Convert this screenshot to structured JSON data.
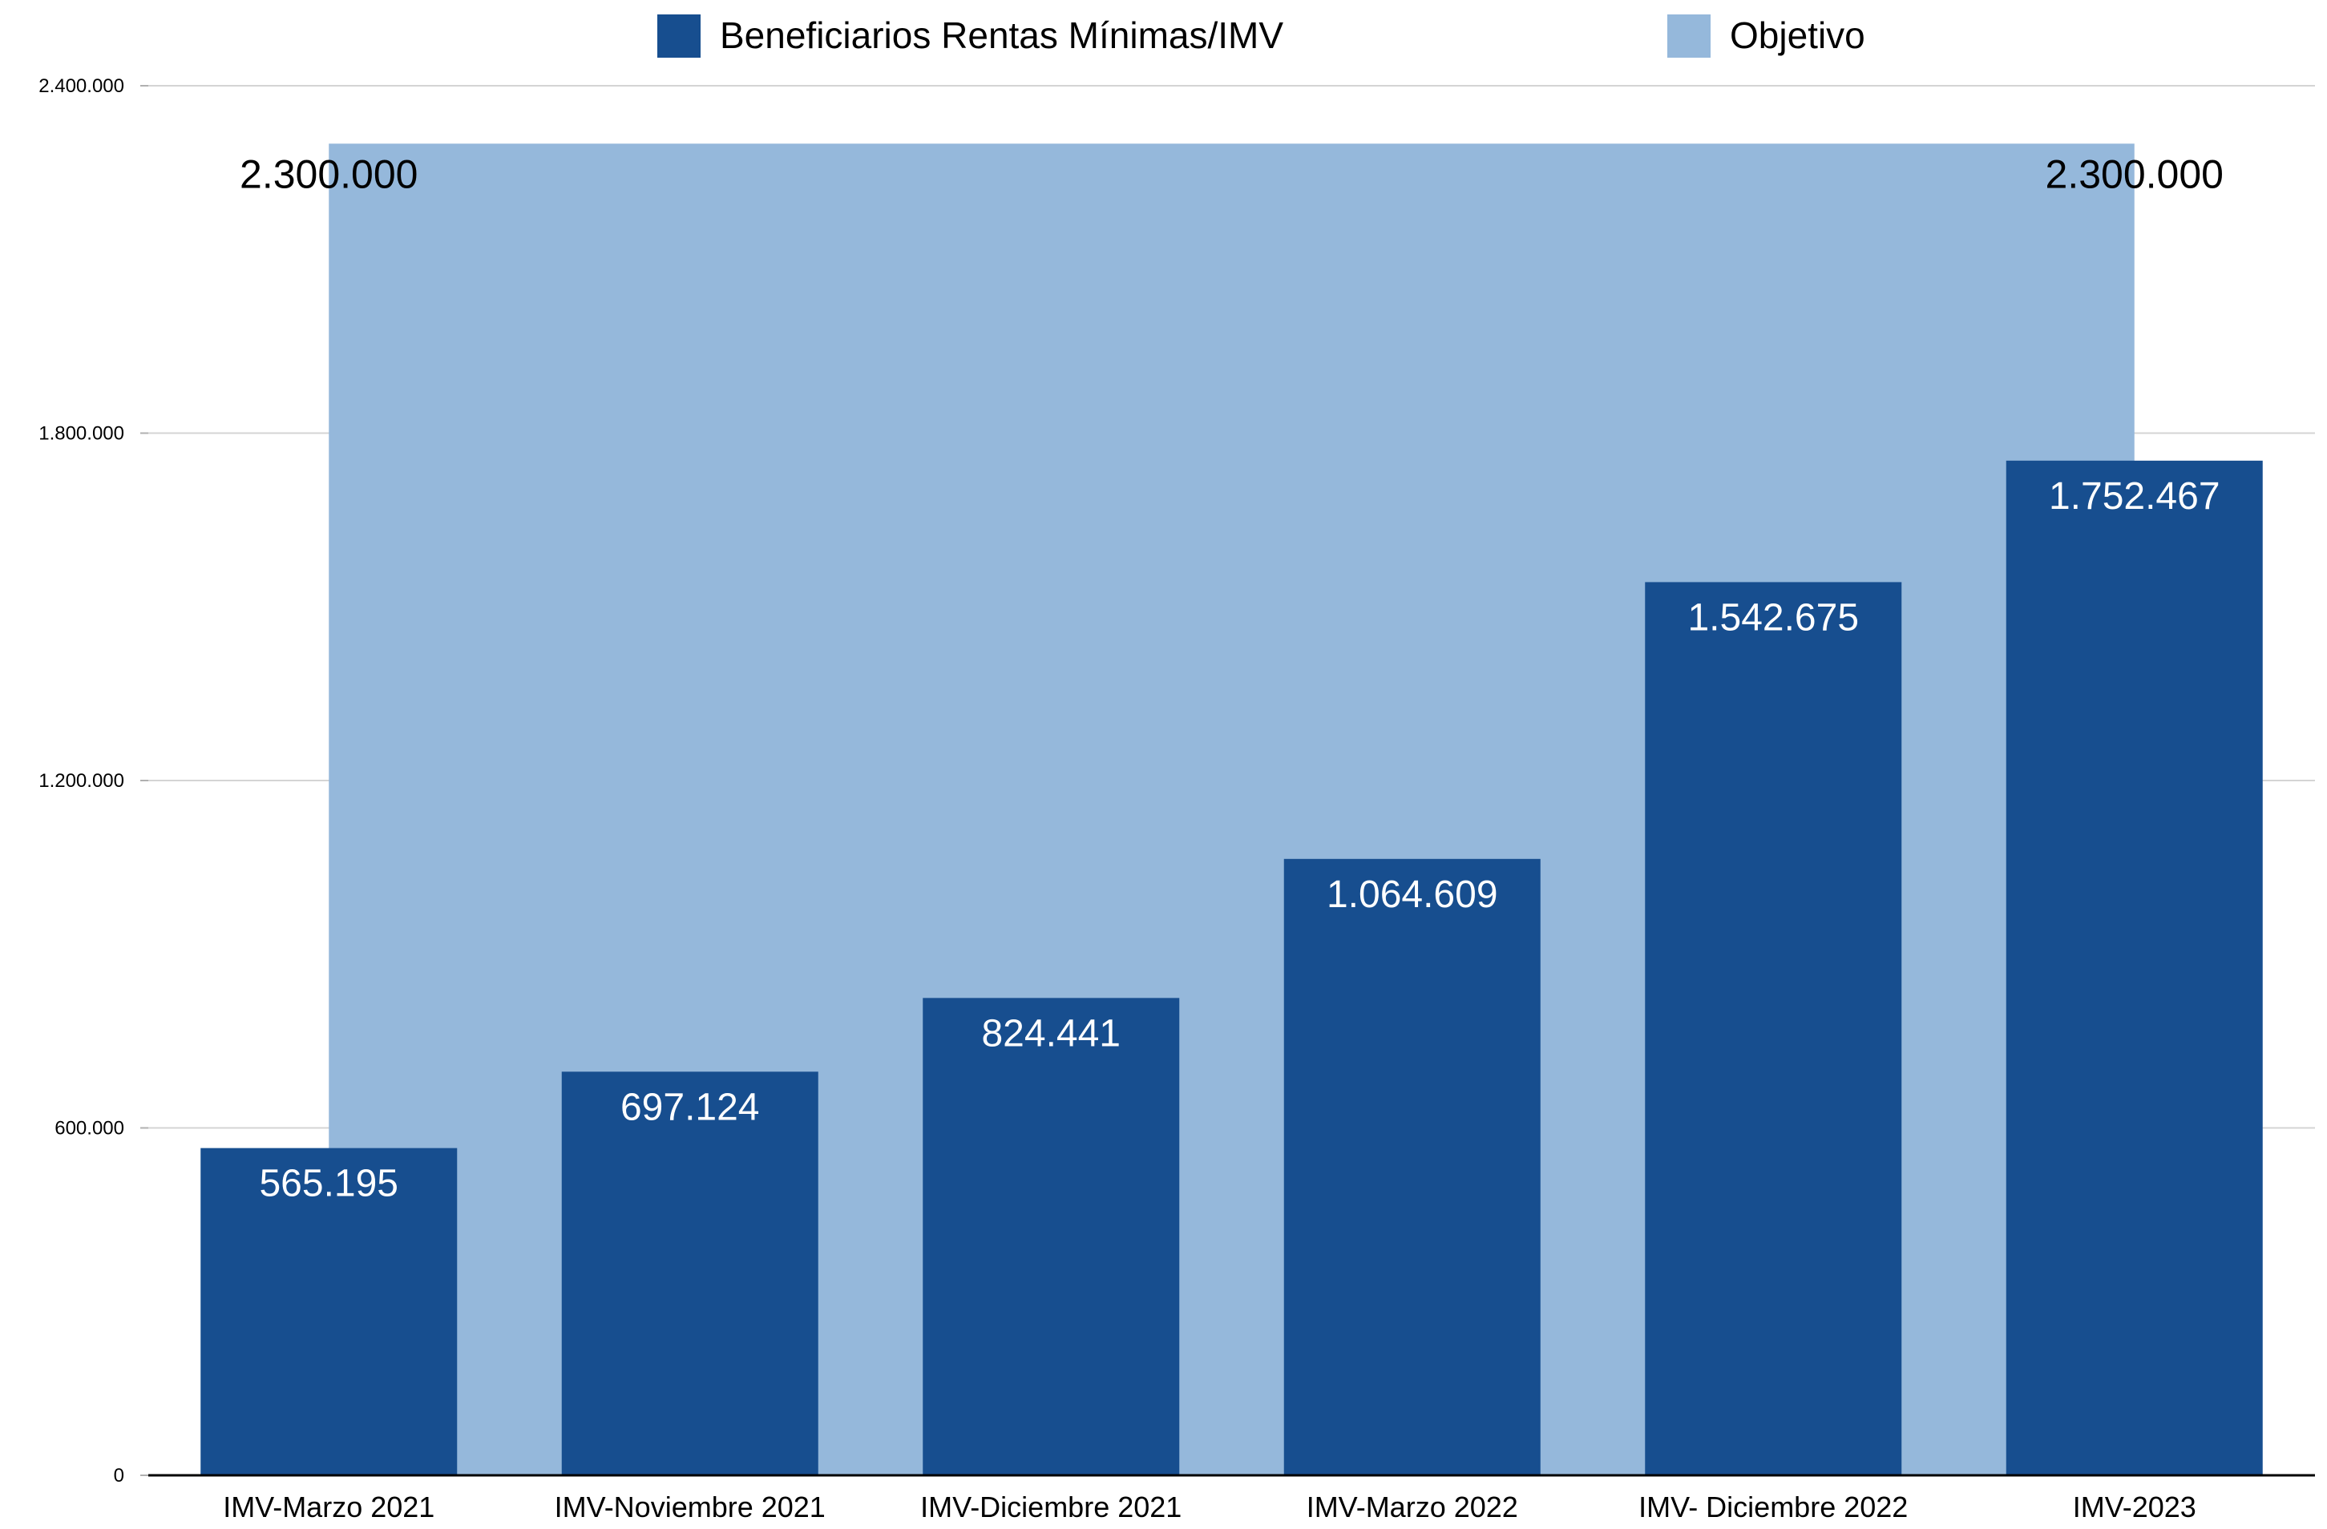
{
  "chart_data": {
    "type": "bar",
    "categories": [
      "IMV-Marzo 2021",
      "IMV-Noviembre 2021",
      "IMV-Diciembre 2021",
      "IMV-Marzo 2022",
      "IMV- Diciembre 2022",
      "IMV-2023"
    ],
    "series": [
      {
        "name": "Beneficiarios Rentas Mínimas/IMV",
        "values": [
          565195,
          697124,
          824441,
          1064609,
          1542675,
          1752467
        ],
        "value_labels": [
          "565.195",
          "697.124",
          "824.441",
          "1.064.609",
          "1.542.675",
          "1.752.467"
        ],
        "color": "#174e8f"
      },
      {
        "name": "Objetivo",
        "type": "area",
        "values": [
          2300000,
          2300000,
          2300000,
          2300000,
          2300000,
          2300000
        ],
        "end_labels": [
          "2.300.000",
          "2.300.000"
        ],
        "color": "#95b8db"
      }
    ],
    "ylim": [
      0,
      2400000
    ],
    "y_ticks": [
      0,
      600000,
      1200000,
      1800000,
      2400000
    ],
    "y_tick_labels": [
      "0",
      "600.000",
      "1.200.000",
      "1.800.000",
      "2.400.000"
    ],
    "grid": true,
    "legend_position": "top-center",
    "title": "",
    "xlabel": "",
    "ylabel": ""
  }
}
